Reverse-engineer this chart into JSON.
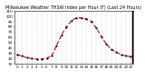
{
  "title": "Milwaukee Weather THSW Index per Hour (F) (Last 24 Hours)",
  "x_labels": [
    "0",
    "1",
    "2",
    "3",
    "4",
    "5",
    "6",
    "7",
    "8",
    "9",
    "10",
    "11",
    "12",
    "13",
    "14",
    "15",
    "16",
    "17",
    "18",
    "19",
    "20",
    "21",
    "22",
    "23"
  ],
  "y_values": [
    28,
    25,
    22,
    20,
    19,
    19,
    21,
    25,
    45,
    65,
    80,
    92,
    97,
    97,
    95,
    90,
    78,
    62,
    48,
    38,
    32,
    28,
    25,
    24
  ],
  "ylim": [
    10,
    110
  ],
  "yticks": [
    10,
    20,
    30,
    40,
    50,
    60,
    70,
    80,
    90,
    100,
    110
  ],
  "ytick_labels": [
    "10",
    "20",
    "30",
    "40",
    "50",
    "60",
    "70",
    "80",
    "90",
    "100",
    "110"
  ],
  "line_color": "#cc0000",
  "marker_color": "#000000",
  "bg_color": "#ffffff",
  "grid_color": "#999999",
  "title_color": "#000000",
  "title_fontsize": 3.5,
  "tick_fontsize": 3.0,
  "line_width": 0.8,
  "marker_size": 1.2,
  "fig_width": 1.6,
  "fig_height": 0.87,
  "dpi": 100
}
